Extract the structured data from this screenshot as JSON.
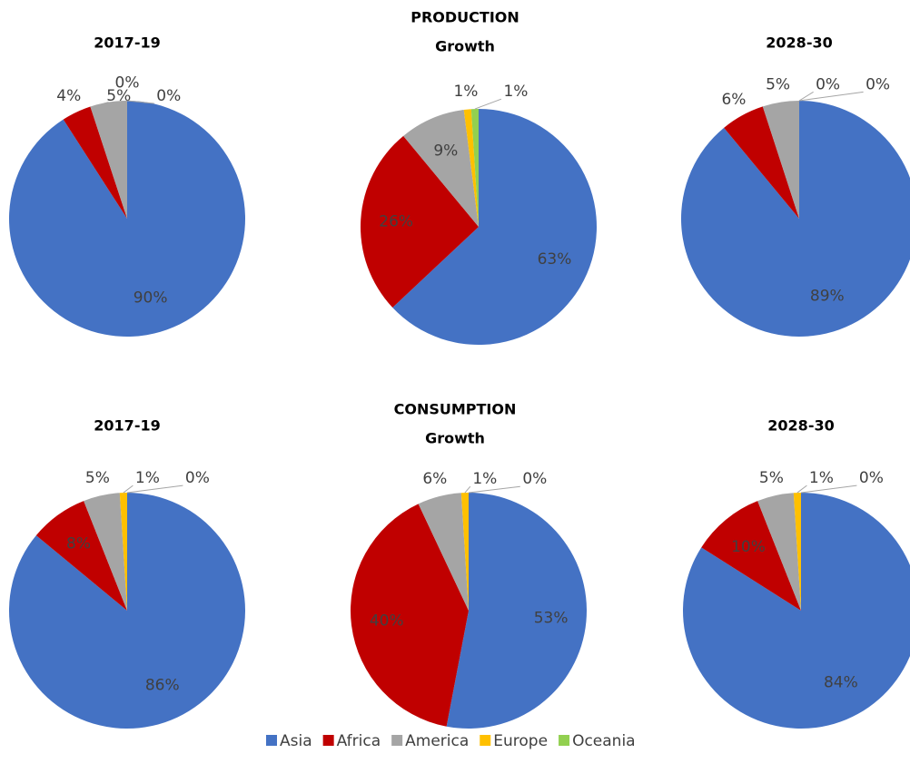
{
  "chart_data": [
    {
      "type": "pie",
      "title": "2017-19",
      "categories": [
        "Asia",
        "Africa",
        "America",
        "Europe",
        "Oceania"
      ],
      "colors": [
        "#4472c4",
        "#c00000",
        "#a5a5a5",
        "#ffc000",
        "#92d050"
      ],
      "values": [
        90,
        4,
        5,
        0,
        0
      ],
      "value_labels": [
        "90%",
        "4%",
        "5%",
        "0%",
        "0%"
      ]
    },
    {
      "type": "pie",
      "title": "PRODUCTION",
      "subtitle": "Growth",
      "categories": [
        "Asia",
        "Africa",
        "America",
        "Europe",
        "Oceania"
      ],
      "colors": [
        "#4472c4",
        "#c00000",
        "#a5a5a5",
        "#ffc000",
        "#92d050"
      ],
      "values": [
        63,
        26,
        9,
        1,
        1
      ],
      "value_labels": [
        "63%",
        "26%",
        "9%",
        "1%",
        "1%"
      ]
    },
    {
      "type": "pie",
      "title": "2028-30",
      "categories": [
        "Asia",
        "Africa",
        "America",
        "Europe",
        "Oceania"
      ],
      "colors": [
        "#4472c4",
        "#c00000",
        "#a5a5a5",
        "#ffc000",
        "#92d050"
      ],
      "values": [
        89,
        6,
        5,
        0,
        0
      ],
      "value_labels": [
        "89%",
        "6%",
        "5%",
        "0%",
        "0%"
      ]
    },
    {
      "type": "pie",
      "title": "2017-19",
      "categories": [
        "Asia",
        "Africa",
        "America",
        "Europe",
        "Oceania"
      ],
      "colors": [
        "#4472c4",
        "#c00000",
        "#a5a5a5",
        "#ffc000",
        "#92d050"
      ],
      "values": [
        86,
        8,
        5,
        1,
        0
      ],
      "value_labels": [
        "86%",
        "8%",
        "5%",
        "1%",
        "0%"
      ]
    },
    {
      "type": "pie",
      "title": "CONSUMPTION",
      "subtitle": "Growth",
      "categories": [
        "Asia",
        "Africa",
        "America",
        "Europe",
        "Oceania"
      ],
      "colors": [
        "#4472c4",
        "#c00000",
        "#a5a5a5",
        "#ffc000",
        "#92d050"
      ],
      "values": [
        53,
        40,
        6,
        1,
        0
      ],
      "value_labels": [
        "53%",
        "40%",
        "6%",
        "1%",
        "0%"
      ]
    },
    {
      "type": "pie",
      "title": "2028-30",
      "categories": [
        "Asia",
        "Africa",
        "America",
        "Europe",
        "Oceania"
      ],
      "colors": [
        "#4472c4",
        "#c00000",
        "#a5a5a5",
        "#ffc000",
        "#92d050"
      ],
      "values": [
        84,
        10,
        5,
        1,
        0
      ],
      "value_labels": [
        "84%",
        "10%",
        "5%",
        "1%",
        "0%"
      ]
    }
  ]
}
